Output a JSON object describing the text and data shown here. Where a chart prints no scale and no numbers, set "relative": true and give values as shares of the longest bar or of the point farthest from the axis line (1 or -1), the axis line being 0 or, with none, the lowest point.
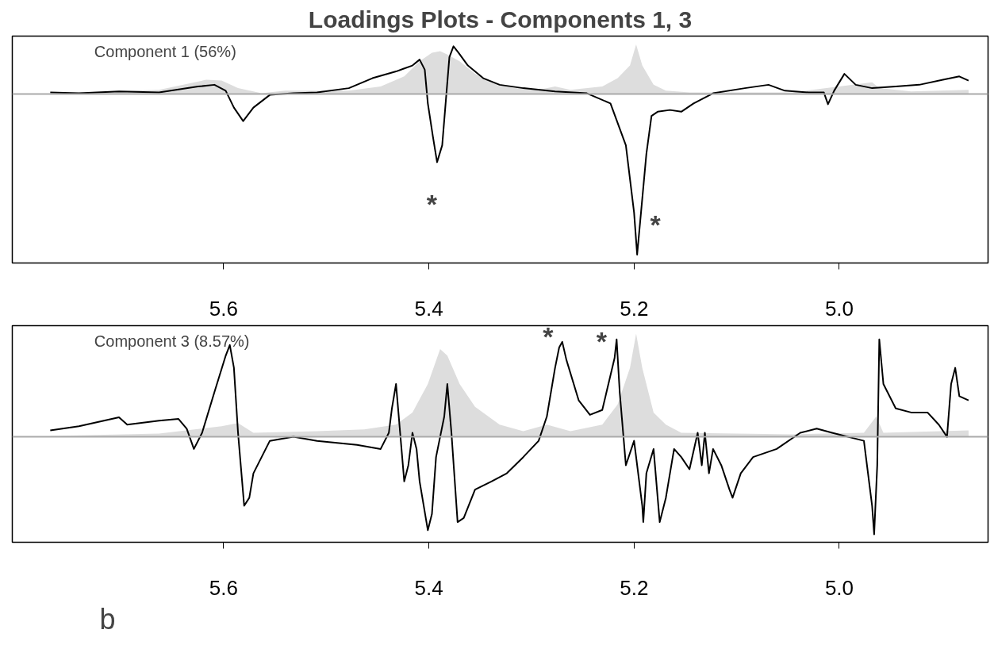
{
  "chart_data": [
    {
      "type": "line",
      "title": "Loadings Plots - Components 1, 3",
      "relative": true,
      "xlim": [
        5.806,
        4.855
      ],
      "xticks": [
        5.6,
        5.4,
        5.2,
        {
          "value": 5.0,
          "label": "5.0"
        }
      ],
      "tick_labels": "x",
      "grid": false,
      "annotations": [
        "Component 1 (56%)",
        "*",
        "*"
      ],
      "ref_lines": [
        {
          "axis": "y",
          "value": 0,
          "color": "#aaaaaa"
        }
      ],
      "series": [
        {
          "type": "area",
          "color": "#dddddd",
          "x": [
            5.769,
            5.663,
            5.617,
            5.602,
            5.586,
            5.563,
            5.54,
            5.509,
            5.478,
            5.447,
            5.424,
            5.409,
            5.397,
            5.389,
            5.382,
            5.37,
            5.355,
            5.339,
            5.316,
            5.293,
            5.277,
            5.262,
            5.231,
            5.216,
            5.204,
            5.198,
            5.192,
            5.181,
            5.169,
            5.146,
            5.123,
            5.046,
            4.968,
            4.961,
            4.93,
            4.874
          ],
          "values": [
            0.005,
            0.026,
            0.089,
            0.084,
            0.037,
            0.005,
            0.021,
            0.021,
            0.021,
            0.047,
            0.11,
            0.204,
            0.257,
            0.267,
            0.246,
            0.204,
            0.126,
            0.073,
            0.037,
            0.026,
            0.047,
            0.026,
            0.047,
            0.099,
            0.178,
            0.309,
            0.178,
            0.058,
            0.021,
            0.01,
            0.01,
            0.01,
            0.073,
            0.037,
            0.016,
            0.026
          ]
        },
        {
          "color": "#000000",
          "x": [
            5.769,
            5.741,
            5.702,
            5.663,
            5.625,
            5.609,
            5.598,
            5.59,
            5.581,
            5.571,
            5.555,
            5.532,
            5.509,
            5.478,
            5.455,
            5.432,
            5.416,
            5.409,
            5.404,
            5.401,
            5.396,
            5.392,
            5.387,
            5.383,
            5.38,
            5.376,
            5.371,
            5.362,
            5.347,
            5.331,
            5.308,
            5.277,
            5.246,
            5.223,
            5.208,
            5.2,
            5.197,
            5.194,
            5.188,
            5.183,
            5.177,
            5.165,
            5.154,
            5.142,
            5.123,
            5.092,
            5.069,
            5.053,
            5.03,
            5.015,
            5.011,
            5.005,
            4.995,
            4.984,
            4.968,
            4.945,
            4.922,
            4.899,
            4.883,
            4.874
          ],
          "values": [
            0.01,
            0.005,
            0.016,
            0.01,
            0.047,
            0.058,
            0.021,
            -0.084,
            -0.168,
            -0.084,
            -0.005,
            0.005,
            0.01,
            0.037,
            0.099,
            0.141,
            0.178,
            0.215,
            0.152,
            -0.058,
            -0.267,
            -0.424,
            -0.319,
            -0.005,
            0.23,
            0.298,
            0.257,
            0.178,
            0.099,
            0.058,
            0.037,
            0.016,
            0.005,
            -0.058,
            -0.319,
            -0.738,
            -1,
            -0.791,
            -0.372,
            -0.136,
            -0.11,
            -0.099,
            -0.11,
            -0.058,
            0.005,
            0.037,
            0.058,
            0.021,
            0.01,
            0.01,
            -0.063,
            0.021,
            0.126,
            0.058,
            0.037,
            0.047,
            0.058,
            0.089,
            0.11,
            0.084
          ]
        }
      ]
    },
    {
      "type": "line",
      "relative": true,
      "xlim": [
        5.806,
        4.855
      ],
      "xticks": [
        5.6,
        5.4,
        5.2,
        {
          "value": 5.0,
          "label": "5.0"
        }
      ],
      "tick_labels": "x",
      "grid": false,
      "annotations": [
        "Component 3 (8.57%)",
        "b",
        "*",
        "*"
      ],
      "ref_lines": [
        {
          "axis": "y",
          "value": 0,
          "color": "#aaaaaa"
        }
      ],
      "series": [
        {
          "type": "area",
          "color": "#dddddd",
          "x": [
            5.769,
            5.663,
            5.602,
            5.586,
            5.571,
            5.509,
            5.463,
            5.432,
            5.416,
            5.401,
            5.389,
            5.382,
            5.37,
            5.355,
            5.331,
            5.308,
            5.285,
            5.262,
            5.231,
            5.216,
            5.204,
            5.198,
            5.192,
            5.181,
            5.169,
            5.154,
            5.046,
            4.976,
            4.964,
            4.957,
            4.874
          ],
          "values": [
            0.008,
            0.031,
            0.102,
            0.134,
            0.039,
            0.055,
            0.071,
            0.118,
            0.236,
            0.512,
            0.85,
            0.787,
            0.512,
            0.291,
            0.118,
            0.055,
            0.118,
            0.055,
            0.118,
            0.315,
            0.669,
            1,
            0.669,
            0.236,
            0.118,
            0.039,
            0.024,
            0.039,
            0.197,
            0.039,
            0.063
          ]
        },
        {
          "color": "#000000",
          "x": [
            5.769,
            5.741,
            5.702,
            5.694,
            5.663,
            5.644,
            5.636,
            5.629,
            5.621,
            5.609,
            5.598,
            5.594,
            5.59,
            5.586,
            5.58,
            5.575,
            5.571,
            5.555,
            5.532,
            5.509,
            5.47,
            5.447,
            5.439,
            5.436,
            5.432,
            5.428,
            5.424,
            5.42,
            5.416,
            5.412,
            5.409,
            5.401,
            5.397,
            5.393,
            5.385,
            5.382,
            5.378,
            5.372,
            5.366,
            5.355,
            5.339,
            5.324,
            5.308,
            5.293,
            5.285,
            5.277,
            5.273,
            5.27,
            5.266,
            5.254,
            5.243,
            5.231,
            5.225,
            5.219,
            5.217,
            5.214,
            5.208,
            5.2,
            5.192,
            5.191,
            5.188,
            5.181,
            5.175,
            5.169,
            5.161,
            5.154,
            5.146,
            5.138,
            5.134,
            5.131,
            5.127,
            5.123,
            5.115,
            5.107,
            5.104,
            5.096,
            5.084,
            5.061,
            5.038,
            5.022,
            5.007,
            4.976,
            4.968,
            4.966,
            4.963,
            4.961,
            4.957,
            4.945,
            4.93,
            4.914,
            4.903,
            4.895,
            4.891,
            4.887,
            4.883,
            4.874
          ],
          "values": [
            0.063,
            0.102,
            0.189,
            0.118,
            0.157,
            0.173,
            0.079,
            -0.118,
            0.039,
            0.433,
            0.787,
            0.89,
            0.669,
            0.039,
            -0.669,
            -0.591,
            -0.354,
            -0.039,
            0,
            -0.039,
            -0.079,
            -0.118,
            0.039,
            0.276,
            0.512,
            0.039,
            -0.433,
            -0.276,
            0.039,
            -0.118,
            -0.433,
            -0.906,
            -0.748,
            -0.197,
            0.197,
            0.512,
            0.039,
            -0.827,
            -0.787,
            -0.512,
            -0.433,
            -0.354,
            -0.197,
            -0.039,
            0.197,
            0.669,
            0.866,
            0.921,
            0.748,
            0.354,
            0.213,
            0.26,
            0.512,
            0.764,
            0.945,
            0.433,
            -0.276,
            -0.039,
            -0.669,
            -0.827,
            -0.354,
            -0.118,
            -0.827,
            -0.591,
            -0.118,
            -0.197,
            -0.315,
            0.039,
            -0.276,
            0.039,
            -0.354,
            -0.118,
            -0.276,
            -0.512,
            -0.591,
            -0.354,
            -0.197,
            -0.118,
            0.039,
            0.079,
            0.039,
            -0.039,
            -0.669,
            -0.945,
            -0.276,
            0.945,
            0.512,
            0.276,
            0.236,
            0.236,
            0.118,
            0,
            0.512,
            0.669,
            0.394,
            0.354
          ]
        }
      ]
    }
  ]
}
